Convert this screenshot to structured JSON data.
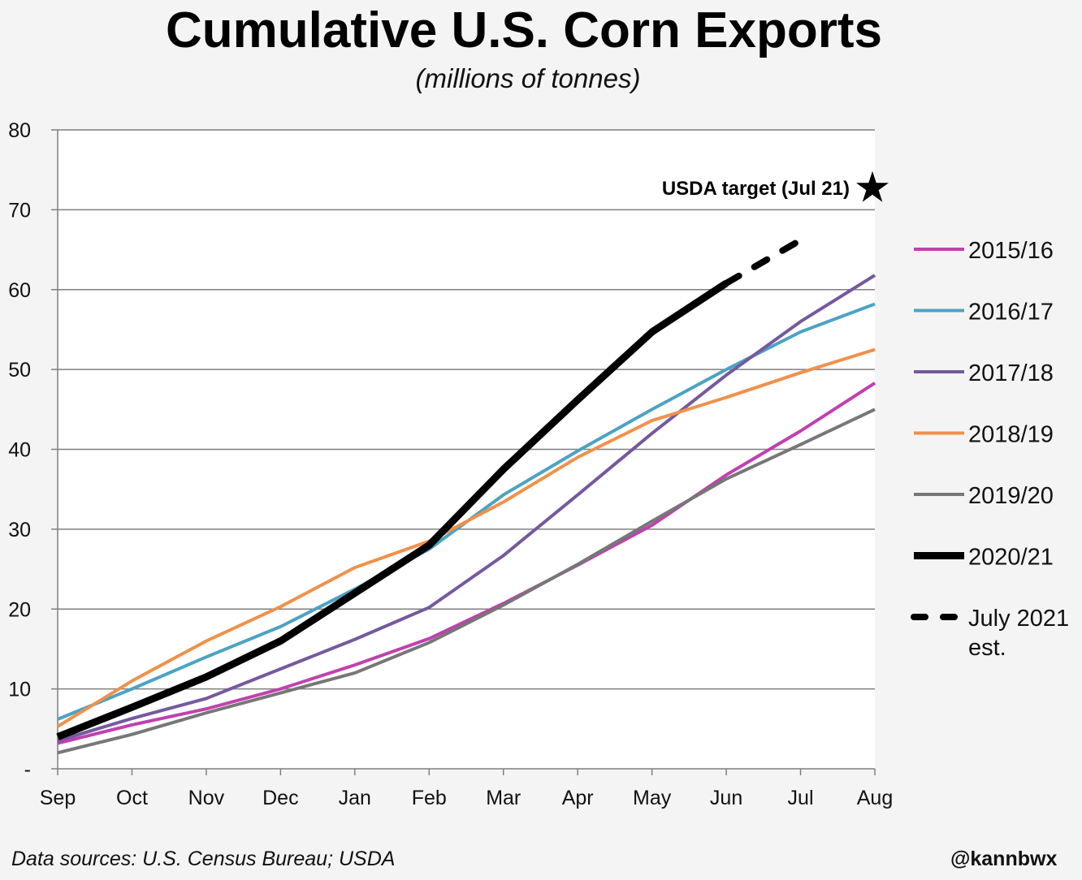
{
  "chart_data": {
    "type": "line",
    "title": "Cumulative U.S. Corn Exports",
    "subtitle": "(millions of tonnes)",
    "xlabel": "",
    "ylabel": "",
    "x": [
      "Sep",
      "Oct",
      "Nov",
      "Dec",
      "Jan",
      "Feb",
      "Mar",
      "Apr",
      "May",
      "Jun",
      "Jul",
      "Aug"
    ],
    "ylim": [
      0,
      80
    ],
    "yticks": [
      0,
      10,
      20,
      30,
      40,
      50,
      60,
      70,
      80
    ],
    "ytick_labels": [
      "-",
      "10",
      "20",
      "30",
      "40",
      "50",
      "60",
      "70",
      "80"
    ],
    "grid": true,
    "legend_position": "right",
    "series": [
      {
        "name": "2015/16",
        "color": "#c040b0",
        "style": "solid",
        "values": [
          3.2,
          5.5,
          7.5,
          10,
          13,
          16.3,
          20.7,
          25.5,
          30.5,
          36.8,
          42.3,
          48.3
        ]
      },
      {
        "name": "2016/17",
        "color": "#4ba3c3",
        "style": "solid",
        "values": [
          6.2,
          10,
          14,
          17.8,
          22.5,
          27.5,
          34.3,
          39.8,
          45,
          50,
          54.7,
          58.2
        ]
      },
      {
        "name": "2017/18",
        "color": "#75599e",
        "style": "solid",
        "values": [
          3.5,
          6.3,
          8.8,
          12.5,
          16.2,
          20.2,
          26.7,
          34.3,
          42,
          49.3,
          56,
          61.8
        ]
      },
      {
        "name": "2018/19",
        "color": "#f0914a",
        "style": "solid",
        "values": [
          5.3,
          11,
          16,
          20.3,
          25.2,
          28.5,
          33.4,
          39,
          43.6,
          46.5,
          49.6,
          52.5
        ]
      },
      {
        "name": "2019/20",
        "color": "#777777",
        "style": "solid",
        "values": [
          2,
          4.3,
          7,
          9.5,
          12,
          15.8,
          20.5,
          25.6,
          31,
          36.3,
          40.6,
          45
        ]
      },
      {
        "name": "2020/21",
        "color": "#000000",
        "style": "thick",
        "values": [
          4,
          7.7,
          11.5,
          16,
          22,
          28,
          37.5,
          46.2,
          54.7,
          60.8,
          null,
          null
        ]
      },
      {
        "name": "July 2021 est.",
        "color": "#000000",
        "style": "dashed",
        "values": [
          null,
          null,
          null,
          null,
          null,
          null,
          null,
          null,
          null,
          60.8,
          66.2,
          null
        ]
      }
    ],
    "annotations": [
      {
        "text": "USDA target (Jul 21)",
        "x": "Aug",
        "y": 72.7,
        "marker": "star"
      }
    ]
  },
  "footer": {
    "source": "Data sources: U.S. Census Bureau; USDA",
    "handle": "@kannbwx"
  }
}
